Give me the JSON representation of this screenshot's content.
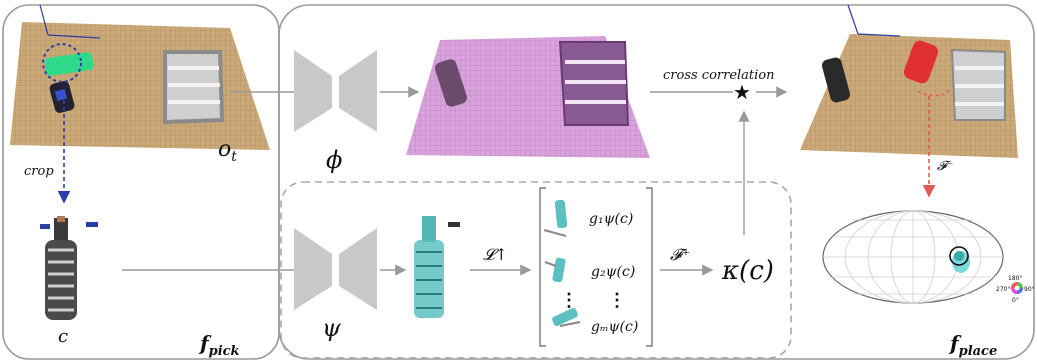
{
  "labels": {
    "o_t": "o",
    "o_t_sub": "t",
    "crop": "crop",
    "c": "c",
    "f_pick": "f",
    "f_pick_sub": "pick",
    "f_place": "f",
    "f_place_sub": "place",
    "phi": "ϕ",
    "psi": "ψ",
    "cross_correlation": "cross correlation",
    "star": "★",
    "kappa": "κ(c)",
    "L_up": "𝓛↑",
    "F_plus": "𝓕⁺",
    "F_minus": "𝓕⁻",
    "g1": "g₁ψ(c)",
    "g2": "g₂ψ(c)",
    "gm": "gₘψ(c)",
    "vdots": "⋮",
    "deg_180": "180°",
    "deg_270": "270°",
    "deg_90": "90°",
    "deg_0": "0°"
  },
  "colors": {
    "table": "#c9a874",
    "pink_table": "#d49ad8",
    "red_arrow": "#e05a5a",
    "blue_arrow": "#2a3fa8",
    "teal": "#3aa9a9",
    "gray_net": "#c8c8c8",
    "panel_border": "#9a9a9a"
  }
}
